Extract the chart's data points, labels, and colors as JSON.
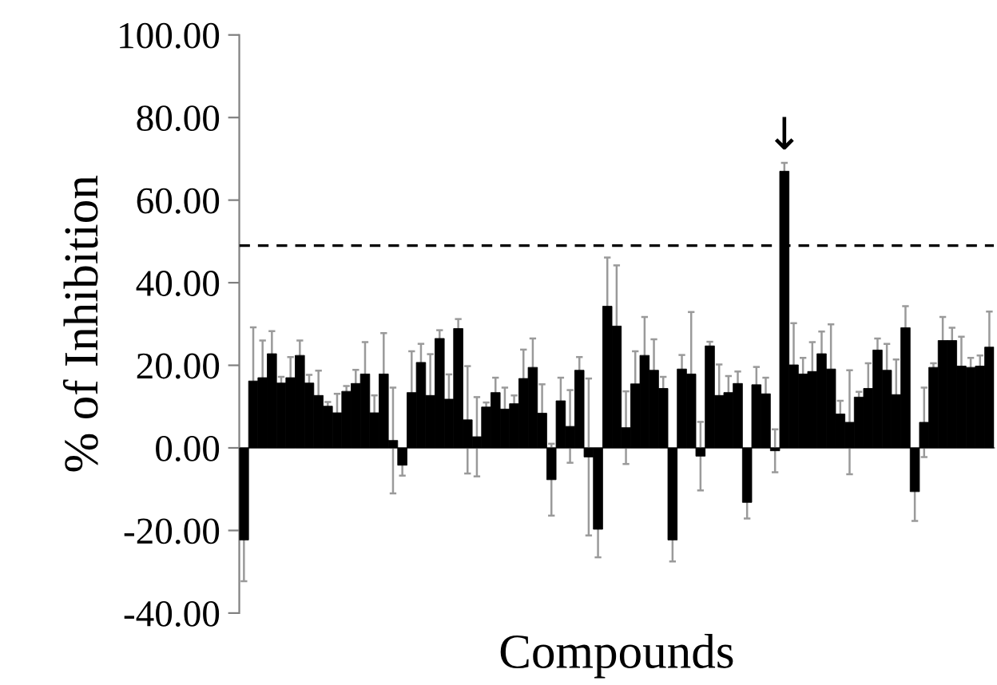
{
  "chart_data": {
    "type": "bar",
    "xlabel": "Compounds",
    "ylabel": "% of Inhibition",
    "categories": [
      null,
      null,
      null,
      null,
      null,
      null,
      null,
      null,
      null,
      null,
      null,
      null,
      null,
      null,
      null,
      null,
      null,
      null,
      null,
      null,
      null,
      null,
      null,
      null,
      null,
      null,
      null,
      null,
      null,
      null,
      null,
      null,
      null,
      null,
      null,
      null,
      null,
      null,
      null,
      null,
      null,
      null,
      null,
      null,
      null,
      null,
      null,
      null,
      null,
      null,
      null,
      null,
      null,
      null,
      null,
      null,
      null,
      null,
      null,
      null,
      null,
      null,
      null,
      null,
      null,
      null,
      null,
      null,
      null,
      null,
      null,
      null,
      null,
      null,
      null,
      null,
      null,
      null,
      null,
      null,
      null
    ],
    "values": [
      -22.3,
      16.2,
      17,
      22.8,
      15.7,
      17,
      22.4,
      15.7,
      12.7,
      10.1,
      8.5,
      13.7,
      15.6,
      17.9,
      8.5,
      17.9,
      1.8,
      -4.2,
      13.4,
      20.7,
      12.7,
      26.5,
      11.8,
      28.9,
      6.8,
      2.7,
      9.9,
      13.4,
      9.4,
      10.7,
      16.8,
      19.5,
      8.4,
      -7.7,
      11.4,
      5.2,
      18.8,
      -2.2,
      -19.7,
      34.3,
      29.5,
      4.9,
      15.5,
      22.4,
      18.8,
      14.4,
      -22.3,
      19.1,
      17.9,
      -2,
      24.7,
      12.7,
      13.4,
      15.6,
      -13.2,
      15.3,
      13.1,
      -0.7,
      67,
      20.1,
      17.9,
      18.5,
      22.8,
      19.1,
      8.2,
      6.2,
      12.3,
      14.4,
      23.7,
      18.8,
      12.9,
      29.1,
      -10.6,
      6.2,
      19.5,
      26,
      26,
      19.8,
      19.5,
      19.8,
      24.4
    ],
    "errors": [
      10,
      13,
      9,
      5.5,
      1.5,
      5,
      3.6,
      2,
      6,
      1,
      4.6,
      1.3,
      3.3,
      7.7,
      4.2,
      9.9,
      12.8,
      2.5,
      10,
      4.5,
      10,
      2,
      6,
      2.3,
      13,
      9.6,
      1.1,
      3.6,
      5.2,
      2,
      7,
      7,
      7,
      8.7,
      5.6,
      8.8,
      3.2,
      19,
      6.8,
      11.8,
      14.7,
      8.8,
      7.9,
      9.3,
      7.5,
      2.8,
      5.2,
      3.4,
      15,
      8.3,
      1,
      7.5,
      4,
      2.9,
      3.9,
      4.3,
      3.9,
      5.2,
      2,
      10.1,
      3.9,
      7.1,
      5.4,
      10.8,
      3.2,
      12.6,
      1.3,
      6.1,
      2.8,
      6.4,
      8.5,
      5.2,
      7.1,
      8.4,
      1,
      5.7,
      3.1,
      7.1,
      2.3,
      2.6,
      8.6
    ],
    "color": "#000000",
    "ylim": [
      -40,
      100
    ],
    "yticks": [
      {
        "value": -40,
        "label": "-40.00"
      },
      {
        "value": -20,
        "label": "-20.00"
      },
      {
        "value": 0,
        "label": "0.00"
      },
      {
        "value": 20,
        "label": "20.00"
      },
      {
        "value": 40,
        "label": "40.00"
      },
      {
        "value": 60,
        "label": "60.00"
      },
      {
        "value": 80,
        "label": "80.00"
      },
      {
        "value": 100,
        "label": "100.00"
      }
    ],
    "ref_lines": [
      {
        "axis": "y",
        "value": 49,
        "line_style": "dashed",
        "color": "#000000"
      }
    ],
    "annotations": [
      "↓"
    ]
  }
}
